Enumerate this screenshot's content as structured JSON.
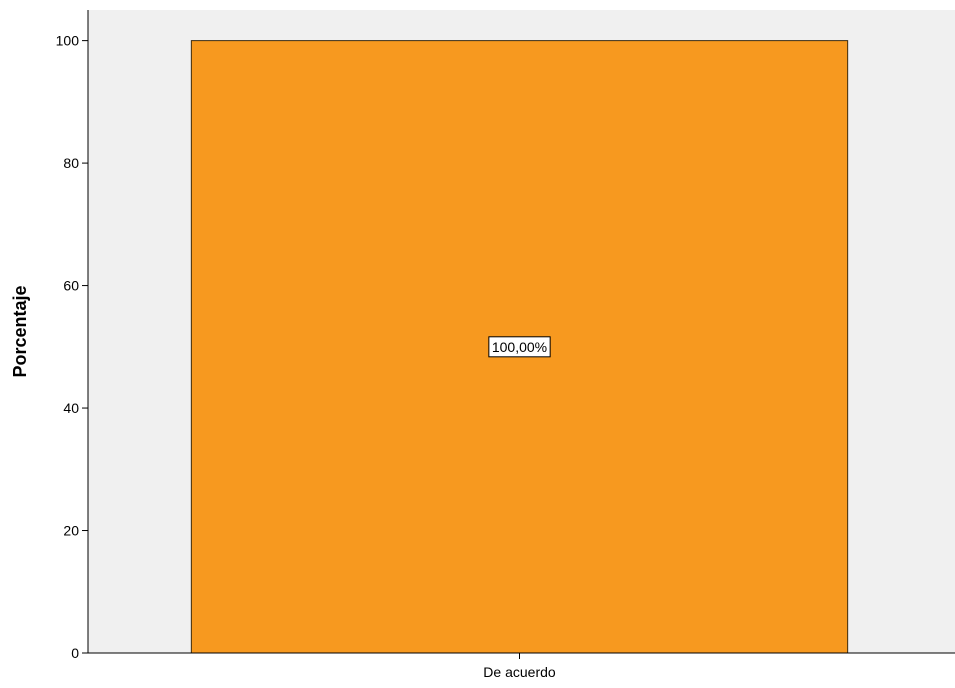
{
  "chart_data": {
    "type": "bar",
    "title": "",
    "xlabel": "",
    "ylabel": "Porcentaje",
    "categories": [
      "De acuerdo"
    ],
    "series": [
      {
        "values": [
          100
        ]
      }
    ],
    "data_labels": [
      "100,00%"
    ],
    "ylim": [
      0,
      105
    ],
    "yticks": [
      0,
      20,
      40,
      60,
      80,
      100
    ],
    "grid": false,
    "legend": "none",
    "colors": {
      "bar": "#F7991F",
      "bar_border": "#3A2A10",
      "plot_background": "#F0F0F0",
      "axis": "#000000",
      "label_box_background": "#FFFFFF"
    }
  }
}
